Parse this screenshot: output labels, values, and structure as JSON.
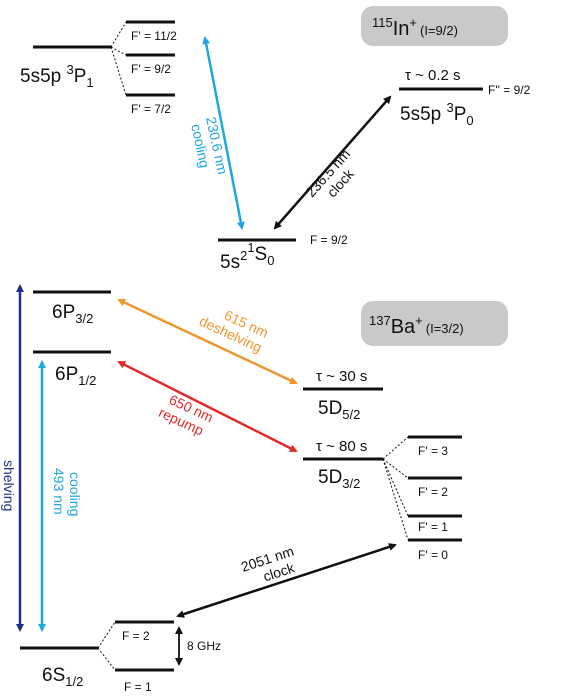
{
  "colors": {
    "level": "#111111",
    "cooling": "#1ea7e1",
    "clock": "#111111",
    "deshelving": "#f0962e",
    "repump": "#e02b2b",
    "shelving": "#1f2f8c",
    "badge": "#c9c9cc"
  },
  "indium": {
    "badge": {
      "ion": "In",
      "mass": "115",
      "charge": "+",
      "spin": "(I=9/2)"
    },
    "p1": {
      "label": "5s5p ",
      "mult": "3",
      "term": "P",
      "j": "1"
    },
    "p1_hf": [
      "F' = 11/2",
      "F' = 9/2",
      "F' = 7/2"
    ],
    "p0": {
      "label": "5s5p ",
      "mult": "3",
      "term": "P",
      "j": "0",
      "lifetime": "τ ~ 0.2 s",
      "f": "F'' = 9/2"
    },
    "s0": {
      "label": "5s",
      "pow": "2",
      "mult": "1",
      "term": "S",
      "j": "0",
      "f": "F = 9/2"
    },
    "cooling_wl": "230.6 nm",
    "cooling_name": "cooling",
    "clock_wl": "236.5 nm",
    "clock_name": "clock"
  },
  "barium": {
    "badge": {
      "ion": "Ba",
      "mass": "137",
      "charge": "+",
      "spin": "(I=3/2)"
    },
    "p32": {
      "term": "6P",
      "j": "3/2"
    },
    "p12": {
      "term": "6P",
      "j": "1/2"
    },
    "d52": {
      "term": "5D",
      "j": "5/2",
      "lifetime": "τ ~ 30 s"
    },
    "d32": {
      "term": "5D",
      "j": "3/2",
      "lifetime": "τ ~ 80 s"
    },
    "d32_hf": [
      "F' = 3",
      "F' = 2",
      "F' = 1",
      "F' = 0"
    ],
    "s12": {
      "term": "6S",
      "j": "1/2"
    },
    "s12_hf": [
      "F = 2",
      "F = 1"
    ],
    "splitting": "8 GHz",
    "deshelving_wl": "615 nm",
    "deshelving_name": "deshelving",
    "repump_wl": "650 nm",
    "repump_name": "repump",
    "cooling_wl": "493 nm",
    "cooling_name": "cooling",
    "shelving_name": "shelving",
    "clock_wl": "2051 nm",
    "clock_name": "clock"
  }
}
